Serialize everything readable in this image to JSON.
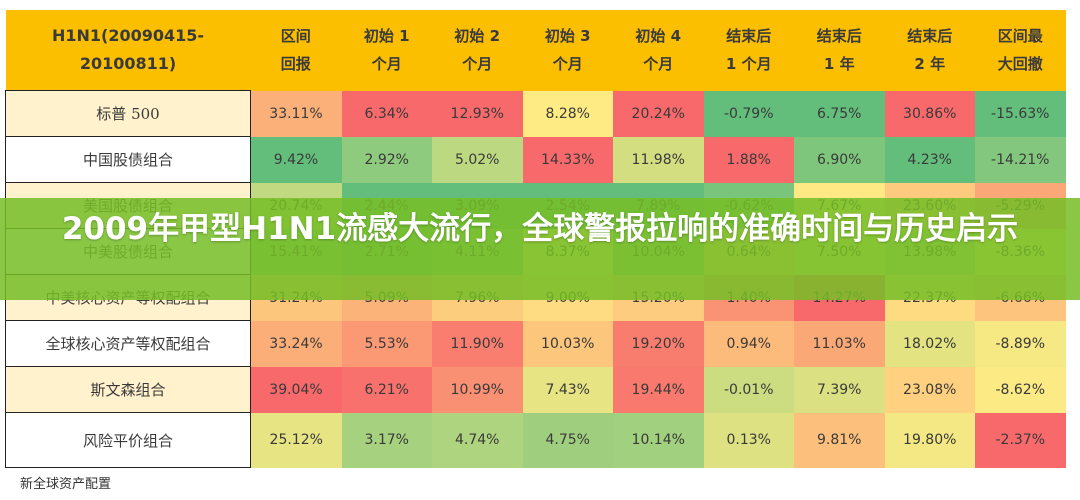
{
  "table": {
    "headers": [
      "H1N1(20090415-\n20100811)",
      "区间\n回报",
      "初始 1\n个月",
      "初始 2\n个月",
      "初始 3\n个月",
      "初始 4\n个月",
      "结束后\n1 个月",
      "结束后\n1 年",
      "结束后\n2 年",
      "区间最\n大回撤"
    ],
    "rows": [
      {
        "name": "标普 500",
        "values": [
          "33.11%",
          "6.34%",
          "12.93%",
          "8.28%",
          "20.24%",
          "-0.79%",
          "6.75%",
          "30.86%",
          "-15.63%"
        ]
      },
      {
        "name": "中国股债组合",
        "values": [
          "9.42%",
          "2.92%",
          "5.02%",
          "14.33%",
          "11.98%",
          "1.88%",
          "6.90%",
          "4.23%",
          "-14.21%"
        ]
      },
      {
        "name": "美国股债组合",
        "values": [
          "20.74%",
          "2.44%",
          "3.09%",
          "2.54%",
          "7.89%",
          "-0.62%",
          "7.67%",
          "23.60%",
          "-5.29%"
        ]
      },
      {
        "name": "中美股债组合",
        "values": [
          "15.41%",
          "2.71%",
          "4.11%",
          "8.37%",
          "10.04%",
          "0.64%",
          "7.50%",
          "13.98%",
          "-8.36%"
        ]
      },
      {
        "name": "中美核心资产等权配组合",
        "values": [
          "31.24%",
          "5.09%",
          "7.96%",
          "9.00%",
          "15.20%",
          "1.40%",
          "14.27%",
          "22.37%",
          "-6.66%"
        ]
      },
      {
        "name": "全球核心资产等权配组合",
        "values": [
          "33.24%",
          "5.53%",
          "11.90%",
          "10.03%",
          "19.20%",
          "0.94%",
          "11.03%",
          "18.02%",
          "-8.89%"
        ]
      },
      {
        "name": "斯文森组合",
        "values": [
          "39.04%",
          "6.21%",
          "10.99%",
          "7.43%",
          "19.44%",
          "-0.01%",
          "7.39%",
          "23.08%",
          "-8.62%"
        ]
      },
      {
        "name": "风险平价组合",
        "values": [
          "25.12%",
          "3.17%",
          "4.74%",
          "4.75%",
          "10.14%",
          "0.13%",
          "9.81%",
          "19.80%",
          "-2.37%"
        ]
      }
    ]
  },
  "color_scale": {
    "min": "#63be7b",
    "mid": "#ffeb84",
    "max": "#f8696b"
  },
  "header_color": "#fcbf00",
  "footnote": "新全球资产配置",
  "banner": {
    "title": "2009年甲型H1N1流感大流行，全球警报拉响的准确时间与历史启示",
    "color": "#76be26"
  }
}
